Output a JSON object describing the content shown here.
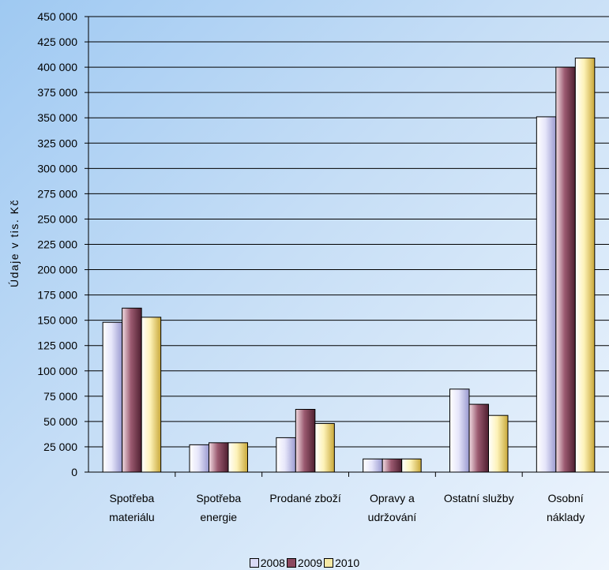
{
  "chart_data": {
    "type": "bar",
    "ylabel": "Údaje v tis. Kč",
    "ylim": [
      0,
      450000
    ],
    "ytick_step": 25000,
    "ytick_labels": [
      "0",
      "25 000",
      "50 000",
      "75 000",
      "100 000",
      "125 000",
      "150 000",
      "175 000",
      "200 000",
      "225 000",
      "250 000",
      "275 000",
      "300 000",
      "325 000",
      "350 000",
      "375 000",
      "400 000",
      "425 000",
      "450 000"
    ],
    "categories": [
      [
        "Spotřeba",
        "materiálu"
      ],
      [
        "Spotřeba",
        "energie"
      ],
      [
        "Prodané zboží"
      ],
      [
        "Opravy a",
        "udržování"
      ],
      [
        "Ostatní služby"
      ],
      [
        "Osobní",
        "náklady"
      ]
    ],
    "series": [
      {
        "name": "2008",
        "color": "#d9d9f5",
        "values": [
          148000,
          27000,
          34000,
          13000,
          82000,
          351000
        ]
      },
      {
        "name": "2009",
        "color": "#8c4a60",
        "values": [
          162000,
          29000,
          62000,
          13000,
          67000,
          400000
        ]
      },
      {
        "name": "2010",
        "color": "#f6e9a5",
        "values": [
          153000,
          29000,
          48000,
          13000,
          56000,
          409000
        ]
      }
    ],
    "grid": true,
    "legend_position": "bottom"
  }
}
